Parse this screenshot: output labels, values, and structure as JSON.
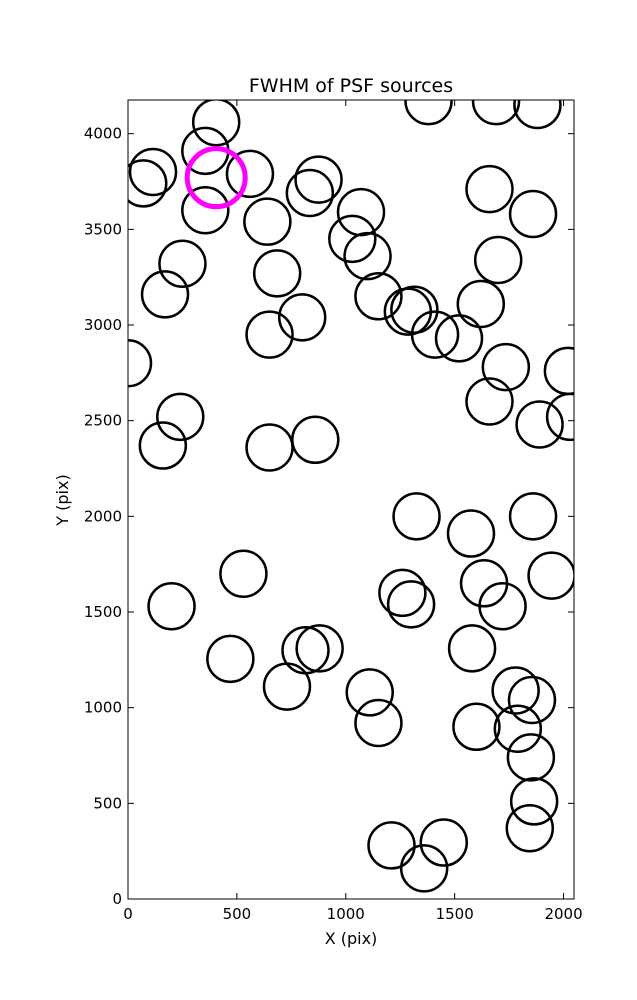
{
  "chart_data": {
    "type": "scatter",
    "title": "FWHM of PSF sources",
    "xlabel": "X (pix)",
    "ylabel": "Y (pix)",
    "xlim": [
      0,
      2048
    ],
    "ylim": [
      0,
      4176
    ],
    "xticks": [
      0,
      500,
      1000,
      1500,
      2000
    ],
    "yticks": [
      0,
      500,
      1000,
      1500,
      2000,
      2500,
      3000,
      3500,
      4000
    ],
    "grid": false,
    "marker": "open circle",
    "marker_color": "#000000",
    "highlight_color": "#ff00ff",
    "sources": [
      {
        "x": 405,
        "y": 4060
      },
      {
        "x": 70,
        "y": 3740
      },
      {
        "x": 115,
        "y": 3800
      },
      {
        "x": 355,
        "y": 3910
      },
      {
        "x": 355,
        "y": 3600
      },
      {
        "x": 560,
        "y": 3790
      },
      {
        "x": 640,
        "y": 3540
      },
      {
        "x": 835,
        "y": 3690
      },
      {
        "x": 875,
        "y": 3760
      },
      {
        "x": 1070,
        "y": 3590
      },
      {
        "x": 1030,
        "y": 3450
      },
      {
        "x": 1100,
        "y": 3360
      },
      {
        "x": 250,
        "y": 3320
      },
      {
        "x": 170,
        "y": 3160
      },
      {
        "x": 685,
        "y": 3270
      },
      {
        "x": 800,
        "y": 3040
      },
      {
        "x": 650,
        "y": 2950
      },
      {
        "x": 1150,
        "y": 3150
      },
      {
        "x": 1285,
        "y": 3070
      },
      {
        "x": 1315,
        "y": 3080
      },
      {
        "x": 1410,
        "y": 2950
      },
      {
        "x": 1520,
        "y": 2930
      },
      {
        "x": 1620,
        "y": 3110
      },
      {
        "x": 1700,
        "y": 3340
      },
      {
        "x": 1660,
        "y": 3710
      },
      {
        "x": 1860,
        "y": 3580
      },
      {
        "x": 1380,
        "y": 4170
      },
      {
        "x": 1690,
        "y": 4170
      },
      {
        "x": 1880,
        "y": 4150
      },
      {
        "x": 0,
        "y": 2800
      },
      {
        "x": 240,
        "y": 2520
      },
      {
        "x": 160,
        "y": 2370
      },
      {
        "x": 650,
        "y": 2360
      },
      {
        "x": 860,
        "y": 2400
      },
      {
        "x": 1660,
        "y": 2600
      },
      {
        "x": 1735,
        "y": 2780
      },
      {
        "x": 1890,
        "y": 2480
      },
      {
        "x": 2020,
        "y": 2760
      },
      {
        "x": 2030,
        "y": 2520
      },
      {
        "x": 1325,
        "y": 2000
      },
      {
        "x": 1575,
        "y": 1910
      },
      {
        "x": 1860,
        "y": 2000
      },
      {
        "x": 530,
        "y": 1700
      },
      {
        "x": 200,
        "y": 1530
      },
      {
        "x": 1260,
        "y": 1600
      },
      {
        "x": 1300,
        "y": 1540
      },
      {
        "x": 1635,
        "y": 1650
      },
      {
        "x": 1720,
        "y": 1530
      },
      {
        "x": 1945,
        "y": 1690
      },
      {
        "x": 470,
        "y": 1255
      },
      {
        "x": 730,
        "y": 1110
      },
      {
        "x": 815,
        "y": 1300
      },
      {
        "x": 880,
        "y": 1310
      },
      {
        "x": 1110,
        "y": 1080
      },
      {
        "x": 1150,
        "y": 920
      },
      {
        "x": 1580,
        "y": 1310
      },
      {
        "x": 1600,
        "y": 900
      },
      {
        "x": 1780,
        "y": 1090
      },
      {
        "x": 1790,
        "y": 890
      },
      {
        "x": 1855,
        "y": 1040
      },
      {
        "x": 1850,
        "y": 740
      },
      {
        "x": 1865,
        "y": 510
      },
      {
        "x": 1845,
        "y": 370
      },
      {
        "x": 1210,
        "y": 280
      },
      {
        "x": 1450,
        "y": 295
      },
      {
        "x": 1360,
        "y": 160
      }
    ],
    "highlight": [
      {
        "x": 405,
        "y": 3770
      }
    ]
  }
}
